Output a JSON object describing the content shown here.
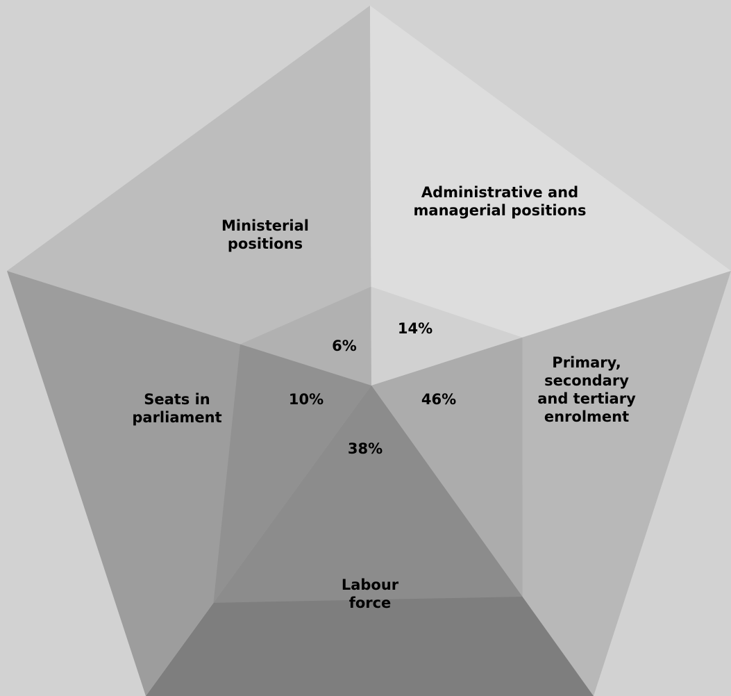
{
  "chart_data": {
    "type": "radar-area",
    "categories": [
      {
        "label": [
          "Ministerial",
          "positions"
        ],
        "value": 6,
        "value_text": "6%",
        "color": "#bdbdbd"
      },
      {
        "label": [
          "Administrative and",
          "managerial positions"
        ],
        "value": 14,
        "value_text": "14%",
        "color": "#dddddd"
      },
      {
        "label": [
          "Primary,",
          "secondary",
          "and tertiary",
          "enrolment"
        ],
        "value": 46,
        "value_text": "46%",
        "color": "#b8b8b8"
      },
      {
        "label": [
          "Labour",
          "force"
        ],
        "value": 38,
        "value_text": "38%",
        "color": "#7e7e7e"
      },
      {
        "label": [
          "Seats in",
          "parliament"
        ],
        "value": 10,
        "value_text": "10%",
        "color": "#9d9d9d"
      }
    ],
    "max": 50
  }
}
